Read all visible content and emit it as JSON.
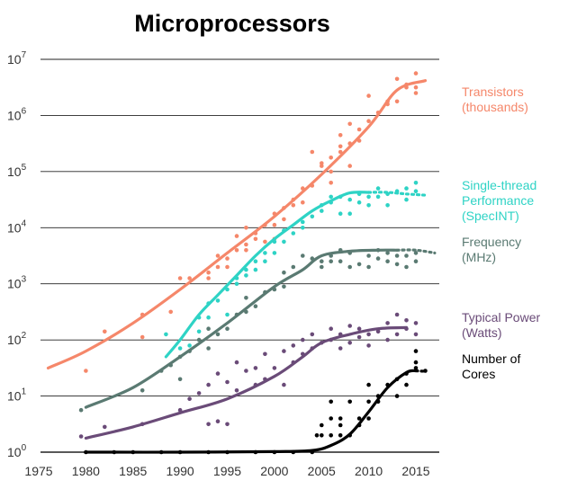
{
  "chart_data": {
    "type": "scatter",
    "title": "Microprocessors",
    "xlabel": "",
    "ylabel": "",
    "x_ticks": [
      "1975",
      "1980",
      "1985",
      "1990",
      "1995",
      "2000",
      "2005",
      "2010",
      "2015"
    ],
    "y_tick_base": "10",
    "y_tick_exponents": [
      "0",
      "1",
      "2",
      "3",
      "4",
      "5",
      "6",
      "7"
    ],
    "xlim": [
      1975,
      2017
    ],
    "ylim_log10": [
      0,
      7
    ],
    "y_scale": "log",
    "grid": "horizontal",
    "series": [
      {
        "name_lines": [
          "Transistors",
          "(thousands)"
        ],
        "color": "#f5876a",
        "trend": [
          [
            1976,
            1.5
          ],
          [
            1980,
            1.8
          ],
          [
            1985,
            2.3
          ],
          [
            1990,
            2.9
          ],
          [
            1995,
            3.55
          ],
          [
            2000,
            4.2
          ],
          [
            2005,
            4.95
          ],
          [
            2010,
            5.8
          ],
          [
            2013,
            6.45
          ],
          [
            2016,
            6.62
          ]
        ],
        "trend_style": "solid",
        "points": [
          [
            1980,
            1.45
          ],
          [
            1982,
            2.15
          ],
          [
            1986,
            2.45
          ],
          [
            1986,
            2.05
          ],
          [
            1989,
            2.5
          ],
          [
            1990,
            3.1
          ],
          [
            1991,
            3.1
          ],
          [
            1993,
            3.1
          ],
          [
            1993,
            3.2
          ],
          [
            1994,
            3.3
          ],
          [
            1994,
            3.5
          ],
          [
            1995,
            3.3
          ],
          [
            1995,
            3.45
          ],
          [
            1996,
            3.6
          ],
          [
            1996,
            3.85
          ],
          [
            1997,
            3.6
          ],
          [
            1997,
            3.7
          ],
          [
            1997,
            4.0
          ],
          [
            1998,
            3.8
          ],
          [
            1998,
            3.9
          ],
          [
            1999,
            3.75
          ],
          [
            1999,
            4.05
          ],
          [
            2000,
            3.8
          ],
          [
            2000,
            4.05
          ],
          [
            2000,
            4.25
          ],
          [
            2001,
            4.15
          ],
          [
            2001,
            4.35
          ],
          [
            2002,
            4.4
          ],
          [
            2002,
            4.5
          ],
          [
            2003,
            4.45
          ],
          [
            2003,
            4.7
          ],
          [
            2004,
            4.75
          ],
          [
            2004,
            5.35
          ],
          [
            2005,
            5.1
          ],
          [
            2005,
            5.15
          ],
          [
            2006,
            4.8
          ],
          [
            2006,
            5.25
          ],
          [
            2006,
            5.0
          ],
          [
            2007,
            5.35
          ],
          [
            2007,
            5.45
          ],
          [
            2007,
            5.65
          ],
          [
            2008,
            5.1
          ],
          [
            2008,
            5.5
          ],
          [
            2008,
            5.85
          ],
          [
            2009,
            5.55
          ],
          [
            2009,
            5.75
          ],
          [
            2010,
            5.9
          ],
          [
            2010,
            6.35
          ],
          [
            2011,
            6.05
          ],
          [
            2012,
            6.2
          ],
          [
            2012,
            6.25
          ],
          [
            2013,
            6.25
          ],
          [
            2013,
            6.65
          ],
          [
            2014,
            6.5
          ],
          [
            2014,
            6.55
          ],
          [
            2015,
            6.5
          ],
          [
            2015,
            6.75
          ],
          [
            2015,
            6.4
          ]
        ]
      },
      {
        "name_lines": [
          "Single-thread",
          "Performance",
          "(SpecINT)"
        ],
        "color": "#2ed3c5",
        "trend": [
          [
            1988.5,
            1.7
          ],
          [
            1990,
            2.0
          ],
          [
            1992,
            2.45
          ],
          [
            1994,
            2.8
          ],
          [
            1996,
            3.15
          ],
          [
            1998,
            3.5
          ],
          [
            2000,
            3.8
          ],
          [
            2002,
            4.05
          ],
          [
            2004,
            4.3
          ],
          [
            2006,
            4.48
          ],
          [
            2008,
            4.62
          ],
          [
            2010,
            4.63
          ]
        ],
        "trend_style": "solid",
        "tail": [
          [
            2010,
            4.63
          ],
          [
            2012,
            4.63
          ],
          [
            2014,
            4.6
          ],
          [
            2016,
            4.58
          ]
        ],
        "points": [
          [
            1988.5,
            2.1
          ],
          [
            1990,
            1.85
          ],
          [
            1991,
            1.9
          ],
          [
            1992,
            2.15
          ],
          [
            1992,
            2.4
          ],
          [
            1993,
            2.4
          ],
          [
            1993,
            2.65
          ],
          [
            1994,
            2.7
          ],
          [
            1995,
            2.45
          ],
          [
            1995,
            2.9
          ],
          [
            1996,
            3.0
          ],
          [
            1996,
            3.1
          ],
          [
            1997,
            3.15
          ],
          [
            1997,
            3.25
          ],
          [
            1998,
            3.25
          ],
          [
            1998,
            3.4
          ],
          [
            1999,
            3.4
          ],
          [
            1999,
            3.55
          ],
          [
            2000,
            3.55
          ],
          [
            2000,
            3.75
          ],
          [
            2001,
            3.75
          ],
          [
            2001,
            3.95
          ],
          [
            2002,
            3.9
          ],
          [
            2003,
            4.0
          ],
          [
            2003,
            4.1
          ],
          [
            2004,
            4.2
          ],
          [
            2005,
            4.3
          ],
          [
            2005,
            4.4
          ],
          [
            2006,
            4.45
          ],
          [
            2006,
            4.55
          ],
          [
            2007,
            4.25
          ],
          [
            2007,
            4.55
          ],
          [
            2008,
            4.25
          ],
          [
            2008,
            4.5
          ],
          [
            2009,
            4.45
          ],
          [
            2009,
            4.6
          ],
          [
            2010,
            4.4
          ],
          [
            2010,
            4.55
          ],
          [
            2011,
            4.55
          ],
          [
            2011,
            4.7
          ],
          [
            2012,
            4.4
          ],
          [
            2012,
            4.6
          ],
          [
            2013,
            4.65
          ],
          [
            2014,
            4.7
          ],
          [
            2014,
            4.5
          ],
          [
            2015,
            4.8
          ],
          [
            2015,
            4.65
          ]
        ]
      },
      {
        "name_lines": [
          "Frequency",
          "(MHz)"
        ],
        "color": "#5a7a72",
        "trend": [
          [
            1980,
            0.8
          ],
          [
            1985,
            1.15
          ],
          [
            1990,
            1.7
          ],
          [
            1995,
            2.3
          ],
          [
            2000,
            2.95
          ],
          [
            2003,
            3.25
          ],
          [
            2005,
            3.5
          ],
          [
            2008,
            3.58
          ],
          [
            2011,
            3.6
          ],
          [
            2013,
            3.6
          ]
        ],
        "trend_style": "solid",
        "tail": [
          [
            2013,
            3.6
          ],
          [
            2015,
            3.6
          ],
          [
            2017,
            3.55
          ]
        ],
        "points": [
          [
            1979.5,
            0.75
          ],
          [
            1986,
            1.1
          ],
          [
            1988,
            1.45
          ],
          [
            1989,
            1.55
          ],
          [
            1990,
            1.3
          ],
          [
            1990,
            1.7
          ],
          [
            1991,
            1.8
          ],
          [
            1992,
            2.0
          ],
          [
            1993,
            1.85
          ],
          [
            1993,
            2.2
          ],
          [
            1994,
            2.1
          ],
          [
            1995,
            2.2
          ],
          [
            1996,
            2.45
          ],
          [
            1997,
            2.5
          ],
          [
            1997,
            2.75
          ],
          [
            1998,
            2.6
          ],
          [
            1999,
            2.85
          ],
          [
            2000,
            2.9
          ],
          [
            2001,
            2.95
          ],
          [
            2001,
            3.2
          ],
          [
            2002,
            3.3
          ],
          [
            2003,
            3.5
          ],
          [
            2004,
            3.45
          ],
          [
            2005,
            3.3
          ],
          [
            2005,
            3.4
          ],
          [
            2006,
            3.4
          ],
          [
            2006,
            3.5
          ],
          [
            2007,
            3.4
          ],
          [
            2007,
            3.6
          ],
          [
            2008,
            3.3
          ],
          [
            2008,
            3.55
          ],
          [
            2009,
            3.35
          ],
          [
            2010,
            3.5
          ],
          [
            2010,
            3.3
          ],
          [
            2011,
            3.45
          ],
          [
            2011,
            3.6
          ],
          [
            2012,
            3.4
          ],
          [
            2012,
            3.55
          ],
          [
            2013,
            3.5
          ],
          [
            2013,
            3.35
          ],
          [
            2014,
            3.5
          ],
          [
            2014,
            3.3
          ],
          [
            2015,
            3.55
          ],
          [
            2015,
            3.4
          ]
        ]
      },
      {
        "name_lines": [
          "Typical Power",
          "(Watts)"
        ],
        "color": "#6a4b78",
        "trend": [
          [
            1980,
            0.25
          ],
          [
            1985,
            0.45
          ],
          [
            1990,
            0.7
          ],
          [
            1995,
            0.95
          ],
          [
            2000,
            1.35
          ],
          [
            2003,
            1.7
          ],
          [
            2005,
            1.95
          ],
          [
            2008,
            2.1
          ],
          [
            2011,
            2.2
          ],
          [
            2014,
            2.22
          ]
        ],
        "trend_style": "solid",
        "points": [
          [
            1979.5,
            0.28
          ],
          [
            1982,
            0.45
          ],
          [
            1986,
            0.5
          ],
          [
            1990,
            0.75
          ],
          [
            1991,
            0.95
          ],
          [
            1992,
            1.05
          ],
          [
            1993,
            0.5
          ],
          [
            1993,
            1.2
          ],
          [
            1994,
            1.4
          ],
          [
            1994,
            0.55
          ],
          [
            1995,
            1.25
          ],
          [
            1995,
            0.5
          ],
          [
            1996,
            1.1
          ],
          [
            1996,
            1.6
          ],
          [
            1997,
            1.45
          ],
          [
            1998,
            1.2
          ],
          [
            1998,
            1.5
          ],
          [
            1999,
            1.3
          ],
          [
            1999,
            1.75
          ],
          [
            2000,
            1.5
          ],
          [
            2001,
            1.2
          ],
          [
            2001,
            1.8
          ],
          [
            2002,
            1.6
          ],
          [
            2002,
            1.9
          ],
          [
            2003,
            1.75
          ],
          [
            2003,
            2.0
          ],
          [
            2004,
            1.85
          ],
          [
            2004,
            2.1
          ],
          [
            2005,
            1.95
          ],
          [
            2006,
            2.0
          ],
          [
            2006,
            2.2
          ],
          [
            2007,
            1.85
          ],
          [
            2007,
            2.1
          ],
          [
            2008,
            1.95
          ],
          [
            2008,
            2.25
          ],
          [
            2009,
            2.05
          ],
          [
            2009,
            2.2
          ],
          [
            2010,
            2.1
          ],
          [
            2010,
            1.9
          ],
          [
            2011,
            2.15
          ],
          [
            2012,
            2.0
          ],
          [
            2012,
            2.3
          ],
          [
            2013,
            2.1
          ],
          [
            2013,
            2.45
          ],
          [
            2014,
            2.2
          ],
          [
            2014,
            2.35
          ],
          [
            2015,
            2.3
          ],
          [
            2015,
            2.1
          ]
        ]
      },
      {
        "name_lines": [
          "Number of",
          "Cores"
        ],
        "color": "#000000",
        "trend": [
          [
            1980,
            0
          ],
          [
            1990,
            0
          ],
          [
            2000,
            0.01
          ],
          [
            2004,
            0.03
          ],
          [
            2006,
            0.12
          ],
          [
            2008,
            0.32
          ],
          [
            2010,
            0.72
          ],
          [
            2012,
            1.15
          ],
          [
            2014,
            1.42
          ],
          [
            2015,
            1.45
          ]
        ],
        "trend_style": "solid",
        "tail": [
          [
            2015,
            1.45
          ],
          [
            2016,
            1.44
          ]
        ],
        "points": [
          [
            1980,
            0
          ],
          [
            1983,
            0
          ],
          [
            1985,
            0
          ],
          [
            1988,
            0
          ],
          [
            1990,
            0
          ],
          [
            1993,
            0
          ],
          [
            1995,
            0
          ],
          [
            1998,
            0
          ],
          [
            2000,
            0
          ],
          [
            2002,
            0
          ],
          [
            2004,
            0
          ],
          [
            2004.5,
            0.3
          ],
          [
            2005,
            0.3
          ],
          [
            2005,
            0.48
          ],
          [
            2006,
            0.3
          ],
          [
            2006,
            0.6
          ],
          [
            2006,
            0.9
          ],
          [
            2007,
            0.3
          ],
          [
            2007,
            0.48
          ],
          [
            2007,
            0.6
          ],
          [
            2008,
            0.3
          ],
          [
            2008,
            0.9
          ],
          [
            2009,
            0.48
          ],
          [
            2009,
            0.6
          ],
          [
            2010,
            0.6
          ],
          [
            2010,
            0.9
          ],
          [
            2010,
            1.2
          ],
          [
            2011,
            0.9
          ],
          [
            2011,
            1.0
          ],
          [
            2012,
            1.2
          ],
          [
            2013,
            1.0
          ],
          [
            2013,
            1.3
          ],
          [
            2014,
            1.4
          ],
          [
            2014,
            1.2
          ],
          [
            2015,
            1.5
          ],
          [
            2015,
            1.6
          ],
          [
            2015,
            1.8
          ],
          [
            2016,
            1.45
          ]
        ]
      }
    ]
  }
}
